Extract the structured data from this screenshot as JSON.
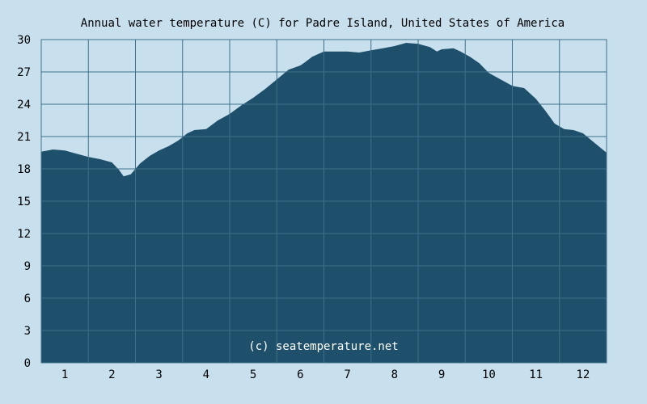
{
  "chart_data": {
    "type": "area",
    "title": "Annual water temperature (C) for Padre Island, United States of America",
    "watermark": "(c) seatemperature.net",
    "xlabel": "",
    "ylabel": "",
    "x_tick_labels": [
      "1",
      "2",
      "3",
      "4",
      "5",
      "6",
      "7",
      "8",
      "9",
      "10",
      "11",
      "12"
    ],
    "y_tick_labels": [
      "0",
      "3",
      "6",
      "9",
      "12",
      "15",
      "18",
      "21",
      "24",
      "27",
      "30"
    ],
    "ylim": [
      0,
      30
    ],
    "xlim": [
      0.5,
      12.5
    ],
    "grid": true,
    "colors": {
      "background": "#c8e0ee",
      "fill": "#1f506b",
      "grid": "#3f6f8a",
      "text": "#000000",
      "watermark": "#ffffff"
    },
    "series": [
      {
        "x": [
          0.5,
          0.75,
          1.0,
          1.25,
          1.5,
          1.75,
          2.0,
          2.15,
          2.25,
          2.4,
          2.6,
          2.8,
          3.0,
          3.2,
          3.4,
          3.6,
          3.75,
          4.0,
          4.25,
          4.5,
          4.75,
          5.0,
          5.25,
          5.5,
          5.75,
          6.0,
          6.1,
          6.25,
          6.5,
          6.75,
          7.0,
          7.25,
          7.5,
          7.75,
          8.0,
          8.25,
          8.5,
          8.75,
          8.9,
          9.0,
          9.25,
          9.4,
          9.6,
          9.8,
          10.0,
          10.25,
          10.5,
          10.75,
          11.0,
          11.2,
          11.4,
          11.6,
          11.8,
          12.0,
          12.25,
          12.5
        ],
        "y": [
          19.6,
          19.8,
          19.7,
          19.4,
          19.1,
          18.9,
          18.6,
          17.9,
          17.3,
          17.5,
          18.5,
          19.2,
          19.7,
          20.1,
          20.6,
          21.3,
          21.6,
          21.7,
          22.5,
          23.1,
          23.9,
          24.6,
          25.4,
          26.3,
          27.2,
          27.6,
          27.9,
          28.4,
          28.9,
          28.9,
          28.9,
          28.8,
          29.0,
          29.2,
          29.4,
          29.7,
          29.6,
          29.3,
          28.9,
          29.1,
          29.2,
          28.9,
          28.4,
          27.8,
          26.9,
          26.3,
          25.7,
          25.5,
          24.5,
          23.4,
          22.2,
          21.7,
          21.6,
          21.3,
          20.4,
          19.5
        ]
      }
    ]
  }
}
